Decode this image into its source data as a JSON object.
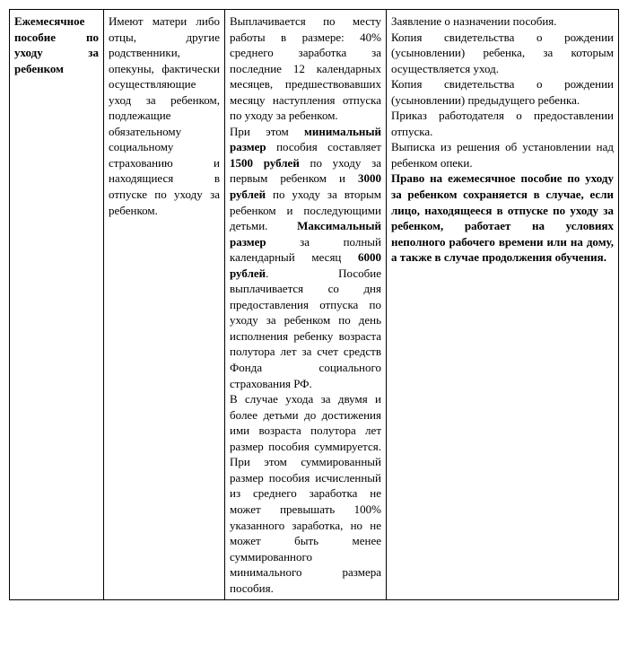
{
  "table": {
    "background": "#ffffff",
    "border_color": "#000000",
    "font_family": "Times New Roman",
    "font_size_pt": 10,
    "col1": {
      "text": "Ежемесячное пособие по уходу за ребенком",
      "bold": true
    },
    "col2": {
      "text": "Имеют матери либо отцы, другие родственники, опекуны, фактически осуществляющие уход за ребенком, подлежащие обязательному социальному страхованию и находящиеся в отпуске по уходу за ребенком."
    },
    "col3": {
      "p1_before": "Выплачивается по месту работы в размере: 40% среднего заработка за последние 12 календарных месяцев, предшествовавших месяцу наступления отпуска по уходу за ребенком.",
      "p2_a": "При этом ",
      "p2_b_bold": "минимальный размер",
      "p2_c": " пособия составляет ",
      "p2_d_bold": "1500 рублей",
      "p2_e": " по уходу за первым ребенком и ",
      "p2_f_bold": "3000 рублей",
      "p2_g": " по уходу за вторым ребенком и последующими детьми. ",
      "p2_h_bold": "Максимальный размер",
      "p2_i": " за полный календарный месяц ",
      "p2_j_bold": "6000 рублей",
      "p2_k": ". Пособие выплачивается со дня предоставления отпуска по уходу за ребенком по день исполнения ребенку возраста полутора лет за счет средств Фонда социального страхования РФ.",
      "p3": "В случае ухода за двумя и более детьми до достижения ими возраста полутора лет размер пособия суммируется. При этом суммированный размер пособия исчисленный из среднего заработка не может превышать 100% указанного заработка, но не может быть менее суммированного минимального размера пособия."
    },
    "col4": {
      "p1": "Заявление о назначении пособия.",
      "p2": "Копия свидетельства о рождении (усыновлении) ребенка, за которым осуществляется уход.",
      "p3": "Копия свидетельства о рождении (усыновлении) предыдущего ребенка.",
      "p4": "Приказ работодателя о предоставлении отпуска.",
      "p5": "Выписка из решения об установлении над ребенком опеки.",
      "p6_bold": "Право на ежемесячное пособие по уходу за ребенком сохраняется в случае, если лицо, находящееся в отпуске по уходу за ребенком, работает на условиях неполного рабочего времени или на дому, а также в случае продолжения обучения."
    }
  }
}
